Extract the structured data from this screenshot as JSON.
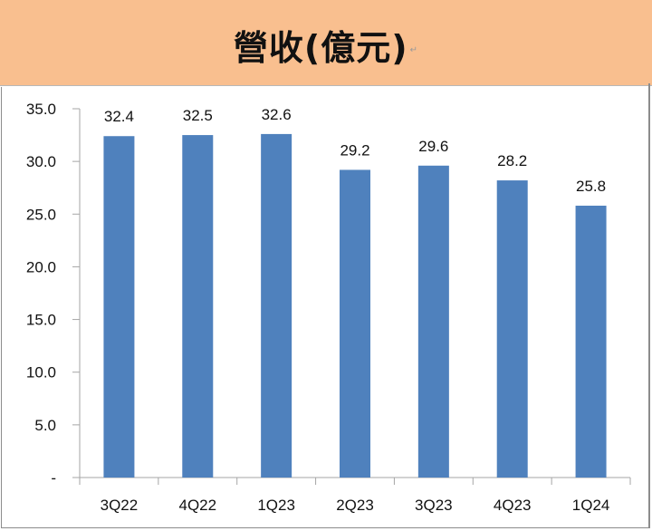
{
  "title": "營收(億元)",
  "title_mark": "↵",
  "colors": {
    "title_band": "#F9BF8F",
    "bar": "#4F81BD",
    "axis": "#A6A6A6",
    "frame": "#8C8C8C"
  },
  "chart_data": {
    "type": "bar",
    "title": "營收(億元)",
    "xlabel": "",
    "ylabel": "",
    "categories": [
      "3Q22",
      "4Q22",
      "1Q23",
      "2Q23",
      "3Q23",
      "4Q23",
      "1Q24"
    ],
    "values": [
      32.4,
      32.5,
      32.6,
      29.2,
      29.6,
      28.2,
      25.8
    ],
    "value_labels": [
      "32.4",
      "32.5",
      "32.6",
      "29.2",
      "29.6",
      "28.2",
      "25.8"
    ],
    "ylim": [
      0,
      35
    ],
    "yticks": [
      0,
      5,
      10,
      15,
      20,
      25,
      30,
      35
    ],
    "ytick_labels": [
      "-",
      "5.0",
      "10.0",
      "15.0",
      "20.0",
      "25.0",
      "30.0",
      "35.0"
    ],
    "grid": false,
    "legend": "none",
    "series": [
      {
        "name": "營收",
        "values": [
          32.4,
          32.5,
          32.6,
          29.2,
          29.6,
          28.2,
          25.8
        ]
      }
    ]
  }
}
